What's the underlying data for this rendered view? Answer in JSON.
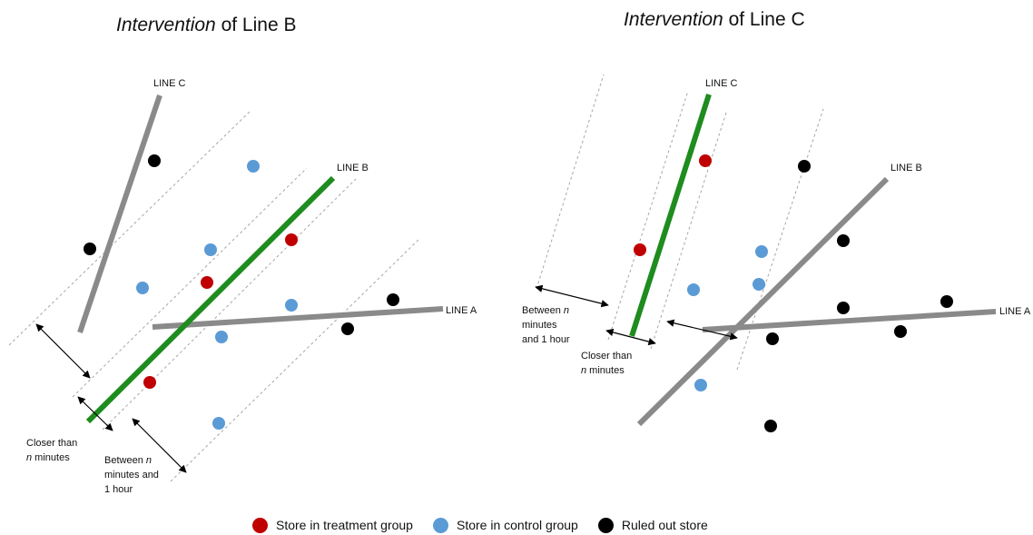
{
  "colors": {
    "treatment": "#c00000",
    "control": "#5b9bd5",
    "ruled_out": "#000000",
    "active_line": "#1e8c1e",
    "other_line": "#8a8a8a",
    "band": "#a6a6a6"
  },
  "panels": [
    {
      "title_italic": "Intervention",
      "title_rest": " of Line B",
      "line_labels": {
        "c": "LINE C",
        "b": "LINE B",
        "a": "LINE A"
      },
      "annotations": {
        "closer_1": "Closer than",
        "closer_2_n": "n",
        "closer_2_rest": " minutes",
        "between_1": "Between ",
        "between_1_n": "n",
        "between_2": "minutes and",
        "between_3": "1 hour"
      }
    },
    {
      "title_italic": "Intervention",
      "title_rest": " of Line C",
      "line_labels": {
        "c": "LINE C",
        "b": "LINE B",
        "a": "LINE A"
      },
      "annotations": {
        "between_1": "Between ",
        "between_1_n": "n",
        "between_2": "minutes",
        "between_3": "and 1 hour",
        "closer_1": "Closer than",
        "closer_2_n": "n",
        "closer_2_rest": " minutes"
      }
    }
  ],
  "legend": [
    {
      "label": "Store in treatment group",
      "color": "#c00000"
    },
    {
      "label": "Store in control group",
      "color": "#5b9bd5"
    },
    {
      "label": "Ruled out store",
      "color": "#000000"
    }
  ]
}
